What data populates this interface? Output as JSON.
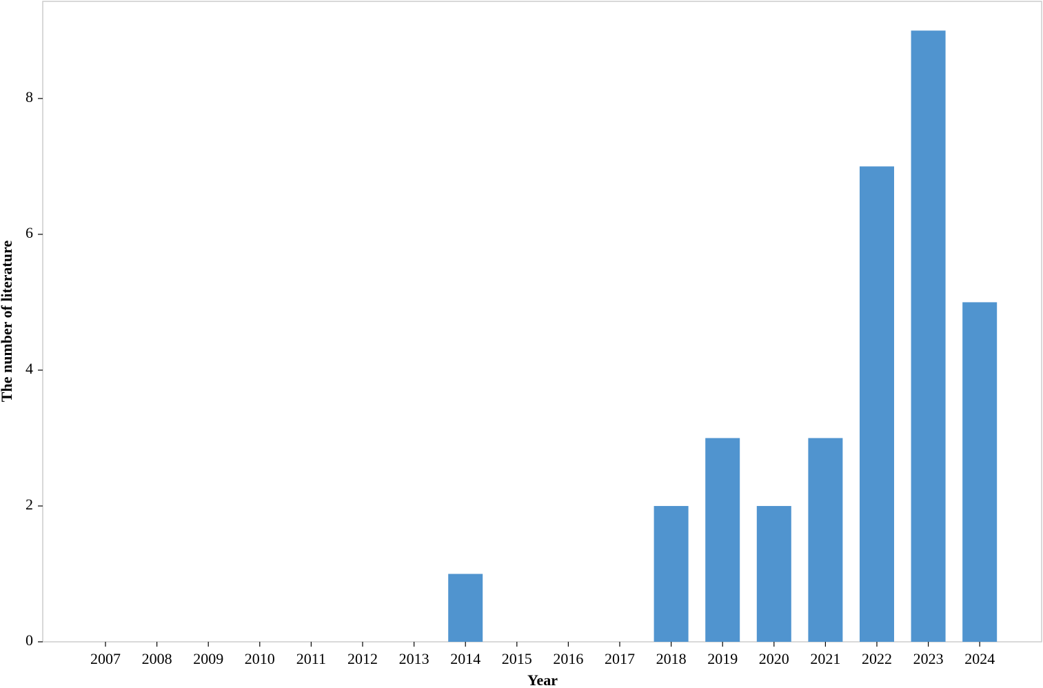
{
  "chart_data": {
    "type": "bar",
    "x_label": "Year",
    "y_label": "The number of literature",
    "categories": [
      "2007",
      "2008",
      "2009",
      "2010",
      "2011",
      "2012",
      "2013",
      "2014",
      "2015",
      "2016",
      "2017",
      "2018",
      "2019",
      "2020",
      "2021",
      "2022",
      "2023",
      "2024"
    ],
    "values": [
      0,
      0,
      0,
      0,
      0,
      0,
      0,
      1,
      0,
      0,
      0,
      2,
      3,
      2,
      3,
      7,
      9,
      5
    ],
    "color": "#5094cf",
    "ylim": [
      0,
      9.43
    ],
    "yticks": [
      0,
      2,
      4,
      6,
      8
    ],
    "grid": false
  }
}
